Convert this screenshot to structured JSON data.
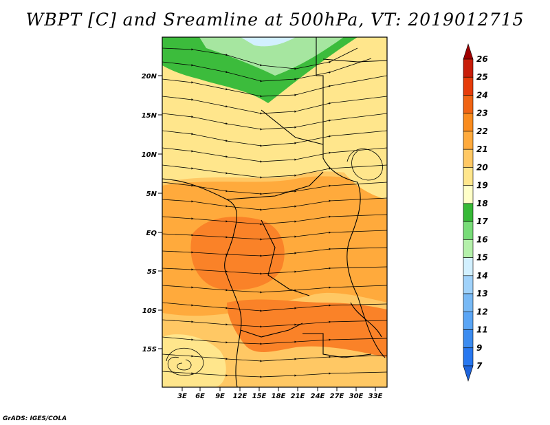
{
  "title": "WBPT [C] and Sreamline at 500hPa, VT: 2019012715",
  "credit": "GrADS: IGES/COLA",
  "lat_ticks": [
    "20N",
    "15N",
    "10N",
    "5N",
    "EQ",
    "5S",
    "10S",
    "15S"
  ],
  "lon_ticks": [
    "3E",
    "6E",
    "9E",
    "12E",
    "15E",
    "18E",
    "21E",
    "24E",
    "27E",
    "30E",
    "33E"
  ],
  "colorbar": {
    "labels": [
      "7",
      "9",
      "11",
      "12",
      "13",
      "14",
      "15",
      "16",
      "17",
      "18",
      "19",
      "20",
      "21",
      "22",
      "23",
      "24",
      "25",
      "26"
    ],
    "colors": [
      "#1e64dc",
      "#2878f0",
      "#3c8cf0",
      "#5aa5f5",
      "#78b9f5",
      "#a0d2fa",
      "#d2f0ff",
      "#b4f0aa",
      "#78dc78",
      "#37b937",
      "#ffffc8",
      "#ffe68c",
      "#ffc864",
      "#ffaa3c",
      "#fa8c1e",
      "#f06414",
      "#e63c0a",
      "#c81e0a",
      "#a00000"
    ]
  },
  "fields": {
    "green_north": "#3cbc3c",
    "light_green": "#a6e6a0",
    "pale_yellow": "#fff0a8",
    "yellow": "#ffd474",
    "orange": "#ffaa3c",
    "dark_orange": "#fa8228"
  }
}
